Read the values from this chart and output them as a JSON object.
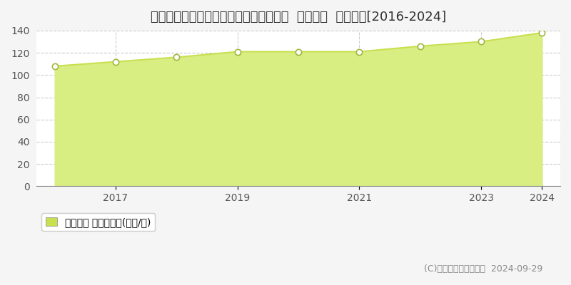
{
  "title": "東京都大田区大森南一丁目１６４番５外  基準地価  地価推移[2016-2024]",
  "years": [
    2016,
    2017,
    2018,
    2019,
    2020,
    2021,
    2022,
    2023,
    2024
  ],
  "values": [
    108,
    112,
    116,
    121,
    121,
    121,
    126,
    130,
    138
  ],
  "line_color": "#c8e050",
  "fill_color": "#d8ed82",
  "marker_color": "#ffffff",
  "marker_edge_color": "#a0b840",
  "background_color": "#f5f5f5",
  "plot_bg_color": "#ffffff",
  "grid_color": "#cccccc",
  "ylim": [
    0,
    140
  ],
  "yticks": [
    0,
    20,
    40,
    60,
    80,
    100,
    120,
    140
  ],
  "legend_label": "基準地価 平均坪単価(万円/坪)",
  "legend_color": "#c8e050",
  "copyright_text": "(C)土地価格ドットコム  2024-09-29",
  "title_fontsize": 13,
  "axis_fontsize": 10,
  "legend_fontsize": 10,
  "copyright_fontsize": 9
}
